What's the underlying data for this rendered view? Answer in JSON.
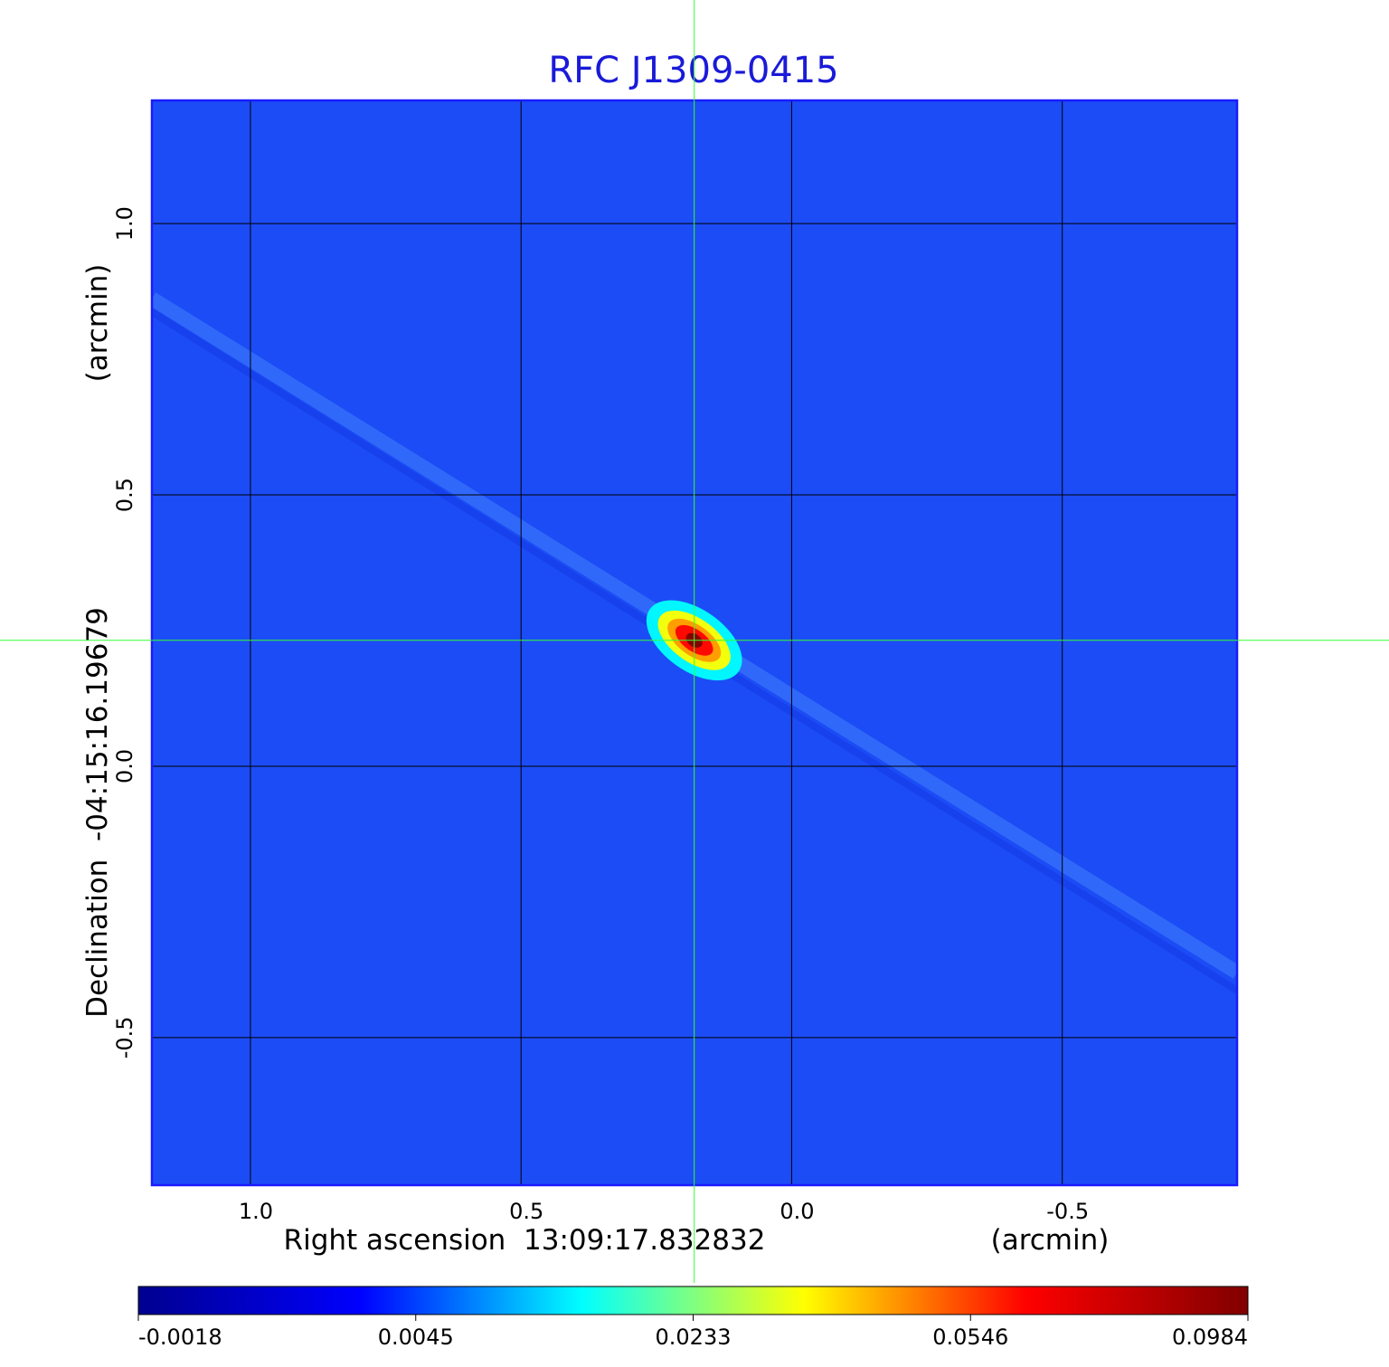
{
  "chart_data": {
    "type": "image",
    "title": "RFC J1309-0415",
    "x_label": "Right ascension  13:09:17.832832",
    "x_unit": "(arcmin)",
    "y_label": "Declination  -04:15:16.19679",
    "y_unit": "(arcmin)",
    "xlim": [
      1.182,
      -0.823
    ],
    "ylim": [
      -0.772,
      1.227
    ],
    "xticks": [
      {
        "value": 1,
        "label": "1.0"
      },
      0.5,
      {
        "value": 0,
        "label": "0.0"
      },
      -0.5
    ],
    "yticks": [
      {
        "value": -0.5,
        "label": "-0.5"
      },
      {
        "value": 0,
        "label": "0.0"
      },
      0.5,
      {
        "value": 1,
        "label": "1.0"
      }
    ],
    "grid": true,
    "source": {
      "x": 0.18,
      "y": 0.232
    },
    "colorbar_ticks": [
      -0.0018,
      0.0045,
      0.0233,
      0.0546,
      0.0984
    ],
    "colormap": [
      "#00008f",
      "#0000ff",
      "#00ffff",
      "#ffff00",
      "#ff0000",
      "#800000"
    ],
    "background_color": "#1c4cf5"
  }
}
